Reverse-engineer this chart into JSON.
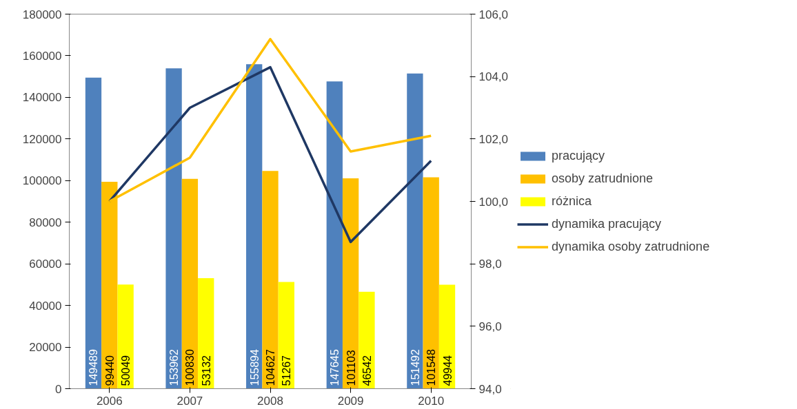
{
  "chart_data": {
    "type": "bar",
    "categories": [
      "2006",
      "2007",
      "2008",
      "2009",
      "2010"
    ],
    "series": [
      {
        "name": "pracujący",
        "color": "#4f81bd",
        "values": [
          149489,
          153962,
          155894,
          147645,
          151492
        ],
        "value_labels": [
          "149489",
          "153962",
          "155894",
          "147645",
          "151492"
        ]
      },
      {
        "name": "osoby zatrudnione",
        "color": "#ffc000",
        "values": [
          99440,
          100830,
          104627,
          101103,
          101548
        ],
        "value_labels": [
          "99440",
          "100830",
          "104627",
          "101103",
          "101548"
        ]
      },
      {
        "name": "różnica",
        "color": "#ffff00",
        "values": [
          50049,
          53132,
          51267,
          46542,
          49944
        ],
        "value_labels": [
          "50049",
          "53132",
          "51267",
          "46542",
          "49944"
        ]
      },
      {
        "name": "dynamika pracujący",
        "type": "line",
        "axis": "y2",
        "color": "#1f3864",
        "values": [
          100.0,
          103.0,
          104.3,
          98.7,
          101.3
        ]
      },
      {
        "name": "dynamika osoby zatrudnione",
        "type": "line",
        "axis": "y2",
        "color": "#ffc000",
        "values": [
          100.0,
          101.4,
          105.2,
          101.6,
          102.1
        ]
      }
    ],
    "ylim": [
      0,
      180000
    ],
    "yticks": [
      0,
      20000,
      40000,
      60000,
      80000,
      100000,
      120000,
      140000,
      160000,
      180000
    ],
    "y2lim": [
      94,
      106
    ],
    "y2ticks": [
      {
        "value": 94,
        "label": "94,0"
      },
      {
        "value": 96,
        "label": "96,0"
      },
      {
        "value": 98,
        "label": "98,0"
      },
      {
        "value": 100,
        "label": "100,0"
      },
      {
        "value": 102,
        "label": "102,0"
      },
      {
        "value": 104,
        "label": "104,0"
      },
      {
        "value": 106,
        "label": "106,0"
      }
    ],
    "grid": false,
    "legend": "right",
    "line_style": "solid",
    "marker": "none"
  }
}
